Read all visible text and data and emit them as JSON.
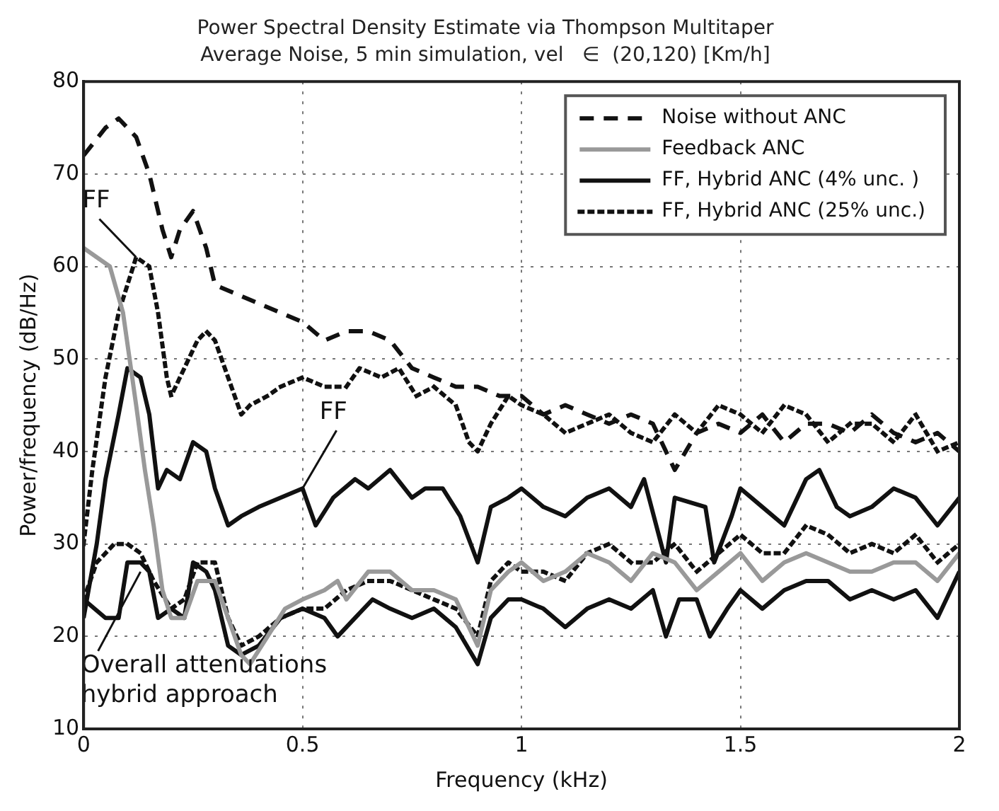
{
  "chart_data": {
    "type": "line",
    "title": "Power Spectral Density Estimate via Thompson Multitaper",
    "subtitle": "Average Noise, 5 min simulation, vel   ∈  (20,120) [Km/h]",
    "xlabel": "Frequency (kHz)",
    "ylabel": "Power/frequency (dB/Hz)",
    "xlim": [
      0,
      2
    ],
    "xticks": [
      0,
      0.5,
      1,
      1.5,
      2
    ],
    "ylim": [
      10,
      80
    ],
    "yticks": [
      10,
      20,
      30,
      40,
      50,
      60,
      70,
      80
    ],
    "grid": true,
    "legend": "top right",
    "marker": "none",
    "annotations": [
      {
        "text": "FF",
        "x": 0.12,
        "y": 61
      },
      {
        "text": "FF",
        "x": 0.5,
        "y": 36
      },
      {
        "text": "Overall attenuations hybrid approach",
        "x": 0.13,
        "y": 27
      }
    ],
    "series": [
      {
        "name": "Noise without ANC",
        "color": "#111111",
        "line_style": "dashed",
        "x": [
          0,
          0.05,
          0.08,
          0.12,
          0.15,
          0.18,
          0.2,
          0.22,
          0.25,
          0.28,
          0.3,
          0.35,
          0.4,
          0.45,
          0.5,
          0.55,
          0.6,
          0.65,
          0.7,
          0.75,
          0.8,
          0.85,
          0.9,
          0.95,
          1.0,
          1.05,
          1.1,
          1.15,
          1.2,
          1.25,
          1.3,
          1.35,
          1.4,
          1.45,
          1.5,
          1.55,
          1.6,
          1.65,
          1.7,
          1.75,
          1.8,
          1.85,
          1.9,
          1.95,
          2.0
        ],
        "values": [
          72,
          75,
          76,
          74,
          70,
          64,
          61,
          64,
          66,
          62,
          58,
          57,
          56,
          55,
          54,
          52,
          53,
          53,
          52,
          49,
          48,
          47,
          47,
          46,
          46,
          44,
          45,
          44,
          43,
          44,
          43,
          38,
          42,
          43,
          42,
          44,
          41,
          43,
          43,
          42,
          44,
          42,
          41,
          42,
          40
        ]
      },
      {
        "name": "Feedback ANC",
        "color": "#999999",
        "line_style": "solid",
        "x": [
          0,
          0.03,
          0.06,
          0.09,
          0.12,
          0.14,
          0.16,
          0.18,
          0.2,
          0.23,
          0.26,
          0.3,
          0.33,
          0.36,
          0.38,
          0.42,
          0.46,
          0.5,
          0.55,
          0.58,
          0.6,
          0.65,
          0.7,
          0.75,
          0.8,
          0.85,
          0.9,
          0.93,
          0.97,
          1.0,
          1.05,
          1.1,
          1.15,
          1.2,
          1.25,
          1.3,
          1.35,
          1.4,
          1.45,
          1.5,
          1.55,
          1.6,
          1.65,
          1.7,
          1.75,
          1.8,
          1.85,
          1.9,
          1.95,
          2.0
        ],
        "values": [
          62,
          61,
          60,
          55,
          45,
          38,
          32,
          25,
          22,
          22,
          26,
          26,
          22,
          18,
          17,
          20,
          23,
          24,
          25,
          26,
          24,
          27,
          27,
          25,
          25,
          24,
          19,
          25,
          27,
          28,
          26,
          27,
          29,
          28,
          26,
          29,
          28,
          25,
          27,
          29,
          26,
          28,
          29,
          28,
          27,
          27,
          28,
          28,
          26,
          29
        ]
      },
      {
        "name": "FF, Hybrid ANC (4% unc. )",
        "color": "#111111",
        "line_style": "solid",
        "x": [
          0,
          0.05,
          0.08,
          0.1,
          0.13,
          0.15,
          0.17,
          0.2,
          0.23,
          0.25,
          0.28,
          0.3,
          0.33,
          0.36,
          0.4,
          0.45,
          0.5,
          0.55,
          0.58,
          0.62,
          0.66,
          0.7,
          0.75,
          0.8,
          0.85,
          0.9,
          0.93,
          0.97,
          1.0,
          1.05,
          1.1,
          1.15,
          1.2,
          1.25,
          1.3,
          1.33,
          1.36,
          1.4,
          1.43,
          1.47,
          1.5,
          1.55,
          1.6,
          1.65,
          1.7,
          1.75,
          1.8,
          1.85,
          1.9,
          1.95,
          2.0
        ],
        "values": [
          24,
          22,
          22,
          28,
          28,
          27,
          22,
          23,
          22,
          28,
          27,
          25,
          19,
          18,
          19,
          22,
          23,
          22,
          20,
          22,
          24,
          23,
          22,
          23,
          21,
          17,
          22,
          24,
          24,
          23,
          21,
          23,
          24,
          23,
          25,
          20,
          24,
          24,
          20,
          23,
          25,
          23,
          25,
          26,
          26,
          24,
          25,
          24,
          25,
          22,
          27
        ]
      },
      {
        "name": "FF, Hybrid ANC (25% unc.)",
        "color": "#111111",
        "line_style": "dotted",
        "x": [
          0,
          0.03,
          0.07,
          0.1,
          0.13,
          0.16,
          0.2,
          0.23,
          0.26,
          0.3,
          0.33,
          0.36,
          0.4,
          0.45,
          0.5,
          0.55,
          0.6,
          0.65,
          0.7,
          0.75,
          0.8,
          0.85,
          0.9,
          0.93,
          0.97,
          1.0,
          1.05,
          1.1,
          1.15,
          1.2,
          1.25,
          1.3,
          1.35,
          1.4,
          1.45,
          1.5,
          1.55,
          1.6,
          1.65,
          1.7,
          1.75,
          1.8,
          1.85,
          1.9,
          1.95,
          2.0
        ],
        "values": [
          24,
          28,
          30,
          30,
          29,
          26,
          23,
          24,
          28,
          28,
          22,
          19,
          20,
          22,
          23,
          23,
          25,
          26,
          26,
          25,
          24,
          23,
          20,
          26,
          28,
          27,
          27,
          26,
          29,
          30,
          28,
          28,
          30,
          27,
          29,
          31,
          29,
          29,
          32,
          31,
          29,
          30,
          29,
          31,
          28,
          30
        ]
      },
      {
        "color": "#111111",
        "line_style": "solid",
        "x": [
          0,
          0.03,
          0.05,
          0.08,
          0.1,
          0.13,
          0.15,
          0.17,
          0.19,
          0.22,
          0.25,
          0.28,
          0.3,
          0.33,
          0.36,
          0.4,
          0.45,
          0.5,
          0.53,
          0.57,
          0.62,
          0.65,
          0.7,
          0.75,
          0.78,
          0.82,
          0.86,
          0.9,
          0.93,
          0.97,
          1.0,
          1.05,
          1.1,
          1.15,
          1.2,
          1.25,
          1.28,
          1.33,
          1.35,
          1.42,
          1.44,
          1.48,
          1.5,
          1.55,
          1.6,
          1.65,
          1.68,
          1.72,
          1.75,
          1.8,
          1.85,
          1.9,
          1.95,
          2.0
        ],
        "values": [
          22,
          30,
          37,
          44,
          49,
          48,
          44,
          36,
          38,
          37,
          41,
          40,
          36,
          32,
          33,
          34,
          35,
          36,
          32,
          35,
          37,
          36,
          38,
          35,
          36,
          36,
          33,
          28,
          34,
          35,
          36,
          34,
          33,
          35,
          36,
          34,
          37,
          28,
          35,
          34,
          28,
          33,
          36,
          34,
          32,
          37,
          38,
          34,
          33,
          34,
          36,
          35,
          32,
          35
        ]
      },
      {
        "color": "#111111",
        "line_style": "dotted",
        "x": [
          0,
          0.02,
          0.05,
          0.08,
          0.12,
          0.15,
          0.17,
          0.19,
          0.2,
          0.23,
          0.26,
          0.28,
          0.3,
          0.33,
          0.36,
          0.38,
          0.42,
          0.45,
          0.5,
          0.55,
          0.6,
          0.63,
          0.68,
          0.72,
          0.76,
          0.8,
          0.85,
          0.88,
          0.9,
          0.93,
          0.97,
          1.0,
          1.05,
          1.1,
          1.15,
          1.2,
          1.25,
          1.3,
          1.35,
          1.4,
          1.45,
          1.5,
          1.55,
          1.6,
          1.65,
          1.7,
          1.75,
          1.8,
          1.85,
          1.9,
          1.95,
          2.0
        ],
        "values": [
          30,
          38,
          48,
          55,
          61,
          60,
          55,
          48,
          46,
          49,
          52,
          53,
          52,
          48,
          44,
          45,
          46,
          47,
          48,
          47,
          47,
          49,
          48,
          49,
          46,
          47,
          45,
          41,
          40,
          43,
          46,
          45,
          44,
          42,
          43,
          44,
          42,
          41,
          44,
          42,
          45,
          44,
          42,
          45,
          44,
          41,
          43,
          43,
          41,
          44,
          40,
          41
        ]
      }
    ]
  }
}
